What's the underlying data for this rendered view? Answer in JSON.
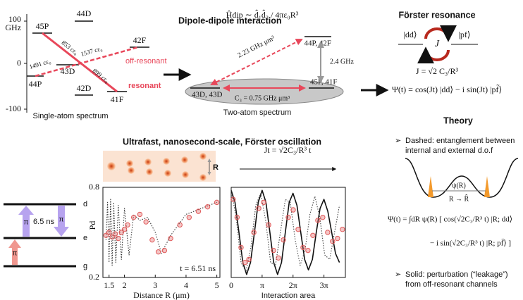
{
  "spectrum": {
    "title": "Dipole-dipole interaction",
    "axis_labels": [
      "100",
      "GHz",
      "0",
      "-100"
    ],
    "levels": [
      "45P",
      "44D",
      "42F",
      "43D",
      "44P",
      "42D",
      "41F"
    ],
    "couplings": [
      "853 cε₀",
      "1537 cε₀",
      "1491 cε₀",
      "899 cε₀"
    ],
    "tags": [
      "off-resonant",
      "resonant"
    ],
    "caption": "Single-atom spectrum"
  },
  "two_atom": {
    "hamiltonian": "Ĥdip ∼ d̂₁d̂₂ / 4πε₀R³",
    "levels": [
      "44P, 42F",
      "43D, 43D",
      "45P, 41F"
    ],
    "couplings": [
      "2.23 GHz μm³",
      "2.4 GHz",
      "C₃ = 0.75 GHz μm³"
    ],
    "caption": "Two-atom spectrum"
  },
  "forster": {
    "title": "Förster resonance",
    "states": [
      "|dd⟩",
      "J",
      "|pf⟩"
    ],
    "equations": [
      "J = √2 C₃/R³",
      "Ψ(t) = cos(Jt) |dd⟩ − i sin(Jt) |pf̃⟩"
    ]
  },
  "theory": {
    "title": "Theory",
    "bullets": [
      "Dashed: entanglement between",
      "internal and external d.o.f",
      "Solid: perturbation (“leakage”)",
      "from off-resonant channels"
    ],
    "well_labels": [
      "ψ(R)",
      "R → R̂"
    ],
    "equations": [
      "Ψ(t) = ∫dR ψ(R) [ cos(√2C₃/R³ t) |R; dd⟩",
      "− i sin(√2C₃/R³ t) |R; pf̃⟩ ]"
    ]
  },
  "scheme": {
    "states": [
      "d",
      "e",
      "g"
    ],
    "labels": [
      "6.5 ns",
      "π",
      "π",
      "π"
    ]
  },
  "oscillation": {
    "title": "Ultrafast, nanosecond-scale,  Förster oscillation",
    "image_label": "R",
    "arrow_label": "Jt = √2C₃/R³ t"
  },
  "chart_data": [
    {
      "type": "scatter",
      "ylabel": "Pd",
      "xlabel": "Distance R (μm)",
      "annotation": "t = 6.51 ns",
      "xlim": [
        1.3,
        5.1
      ],
      "ylim": [
        0.2,
        0.8
      ],
      "xticks": [
        1.5,
        2,
        3,
        4,
        5
      ],
      "yticks": [
        0.2,
        0.8
      ],
      "series": [
        {
          "style": "dotted",
          "color": "#333333",
          "x": [
            1.4,
            1.45,
            1.5,
            1.55,
            1.6,
            1.65,
            1.72,
            1.8,
            1.9,
            2.0,
            2.15,
            2.3,
            2.5,
            2.75,
            3.0,
            3.2,
            3.5,
            4.0,
            4.5,
            5.0
          ],
          "values": [
            0.45,
            0.7,
            0.3,
            0.72,
            0.28,
            0.7,
            0.3,
            0.68,
            0.32,
            0.66,
            0.35,
            0.62,
            0.58,
            0.6,
            0.5,
            0.36,
            0.48,
            0.62,
            0.66,
            0.7
          ]
        },
        {
          "style": "points",
          "color": "#e05a5a",
          "x": [
            1.4,
            1.5,
            1.6,
            1.7,
            1.8,
            1.9,
            2.0,
            2.1,
            2.3,
            2.5,
            2.7,
            2.9,
            3.1,
            3.3,
            3.5,
            3.8,
            4.1,
            4.4,
            4.7,
            5.0
          ],
          "values": [
            0.48,
            0.5,
            0.47,
            0.49,
            0.46,
            0.5,
            0.52,
            0.55,
            0.6,
            0.62,
            0.57,
            0.45,
            0.37,
            0.38,
            0.46,
            0.55,
            0.6,
            0.64,
            0.67,
            0.7
          ]
        }
      ]
    },
    {
      "type": "scatter",
      "xlabel": "Interaction area",
      "xlim": [
        0,
        11.6
      ],
      "ylim": [
        0.2,
        0.8
      ],
      "xticks": [
        0,
        {
          "value": 3.1416,
          "label": "π"
        },
        {
          "value": 6.2832,
          "label": "2π"
        },
        {
          "value": 9.4248,
          "label": "3π"
        }
      ],
      "series": [
        {
          "style": "solid",
          "color": "#111111",
          "x": [
            0,
            0.39,
            0.79,
            1.18,
            1.57,
            1.96,
            2.36,
            2.75,
            3.14,
            3.53,
            3.93,
            4.32,
            4.71,
            5.11,
            5.5,
            5.89,
            6.28,
            6.68,
            7.07,
            7.46,
            7.85,
            8.25,
            8.64,
            9.03,
            9.42,
            9.82,
            10.21,
            10.6,
            11.0
          ],
          "values": [
            0.78,
            0.7,
            0.5,
            0.3,
            0.22,
            0.3,
            0.5,
            0.7,
            0.78,
            0.7,
            0.5,
            0.3,
            0.22,
            0.3,
            0.5,
            0.7,
            0.76,
            0.68,
            0.5,
            0.32,
            0.25,
            0.32,
            0.5,
            0.66,
            0.72,
            0.64,
            0.5,
            0.36,
            0.3
          ]
        },
        {
          "style": "dotted",
          "color": "#444444",
          "x": [
            0,
            0.5,
            1.0,
            1.5,
            2.0,
            2.5,
            3.0,
            3.5,
            4.0,
            4.5,
            5.0,
            5.5,
            6.0,
            6.5,
            7.0,
            7.5,
            8.0,
            8.5,
            9.0,
            9.5,
            10.0,
            10.5,
            11.0
          ],
          "values": [
            0.78,
            0.6,
            0.3,
            0.24,
            0.4,
            0.68,
            0.76,
            0.58,
            0.3,
            0.28,
            0.5,
            0.72,
            0.7,
            0.45,
            0.28,
            0.38,
            0.62,
            0.74,
            0.6,
            0.35,
            0.32,
            0.5,
            0.68
          ]
        },
        {
          "style": "points",
          "color": "#e05a5a",
          "x": [
            0.2,
            0.6,
            1.0,
            1.4,
            1.8,
            2.3,
            2.8,
            3.3,
            3.8,
            4.3,
            4.8,
            5.3,
            5.8,
            6.3,
            6.8,
            7.3,
            7.8,
            8.3,
            8.8,
            9.3,
            9.8,
            10.3,
            10.8,
            11.3
          ],
          "values": [
            0.72,
            0.6,
            0.4,
            0.3,
            0.32,
            0.5,
            0.66,
            0.7,
            0.55,
            0.38,
            0.33,
            0.45,
            0.6,
            0.65,
            0.52,
            0.4,
            0.38,
            0.48,
            0.58,
            0.6,
            0.5,
            0.44,
            0.46,
            0.52
          ]
        }
      ]
    }
  ]
}
